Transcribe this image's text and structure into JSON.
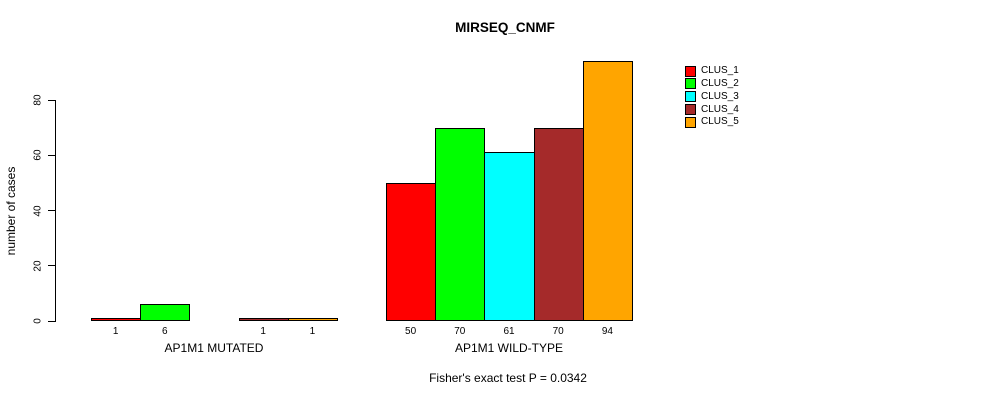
{
  "title": "MIRSEQ_CNMF",
  "footer": "Fisher's exact test P = 0.0342",
  "y_axis": {
    "label": "number of cases",
    "ticks": [
      0,
      20,
      40,
      60,
      80
    ]
  },
  "legend": {
    "position": "right",
    "entries": [
      {
        "label": "CLUS_1",
        "color": "#FF0000"
      },
      {
        "label": "CLUS_2",
        "color": "#00FF00"
      },
      {
        "label": "CLUS_3",
        "color": "#00FFFF"
      },
      {
        "label": "CLUS_4",
        "color": "#A52A2A"
      },
      {
        "label": "CLUS_5",
        "color": "#FFA500"
      }
    ]
  },
  "chart_data": {
    "type": "bar",
    "title": "MIRSEQ_CNMF",
    "ylabel": "number of cases",
    "annotation": "Fisher's exact test P = 0.0342",
    "categories": [
      "AP1M1 MUTATED",
      "AP1M1 WILD-TYPE"
    ],
    "series": [
      {
        "name": "CLUS_1",
        "color": "#FF0000",
        "values": [
          1,
          50
        ]
      },
      {
        "name": "CLUS_2",
        "color": "#00FF00",
        "values": [
          6,
          70
        ]
      },
      {
        "name": "CLUS_3",
        "color": "#00FFFF",
        "values": [
          0,
          61
        ]
      },
      {
        "name": "CLUS_4",
        "color": "#A52A2A",
        "values": [
          1,
          70
        ]
      },
      {
        "name": "CLUS_5",
        "color": "#FFA500",
        "values": [
          1,
          94
        ]
      }
    ],
    "bar_value_labels_shown": true,
    "zero_value_labels_hidden": true,
    "yticks": [
      0,
      20,
      40,
      60,
      80
    ],
    "ylim": [
      0,
      94
    ],
    "grid": false,
    "legend_position": "right"
  }
}
